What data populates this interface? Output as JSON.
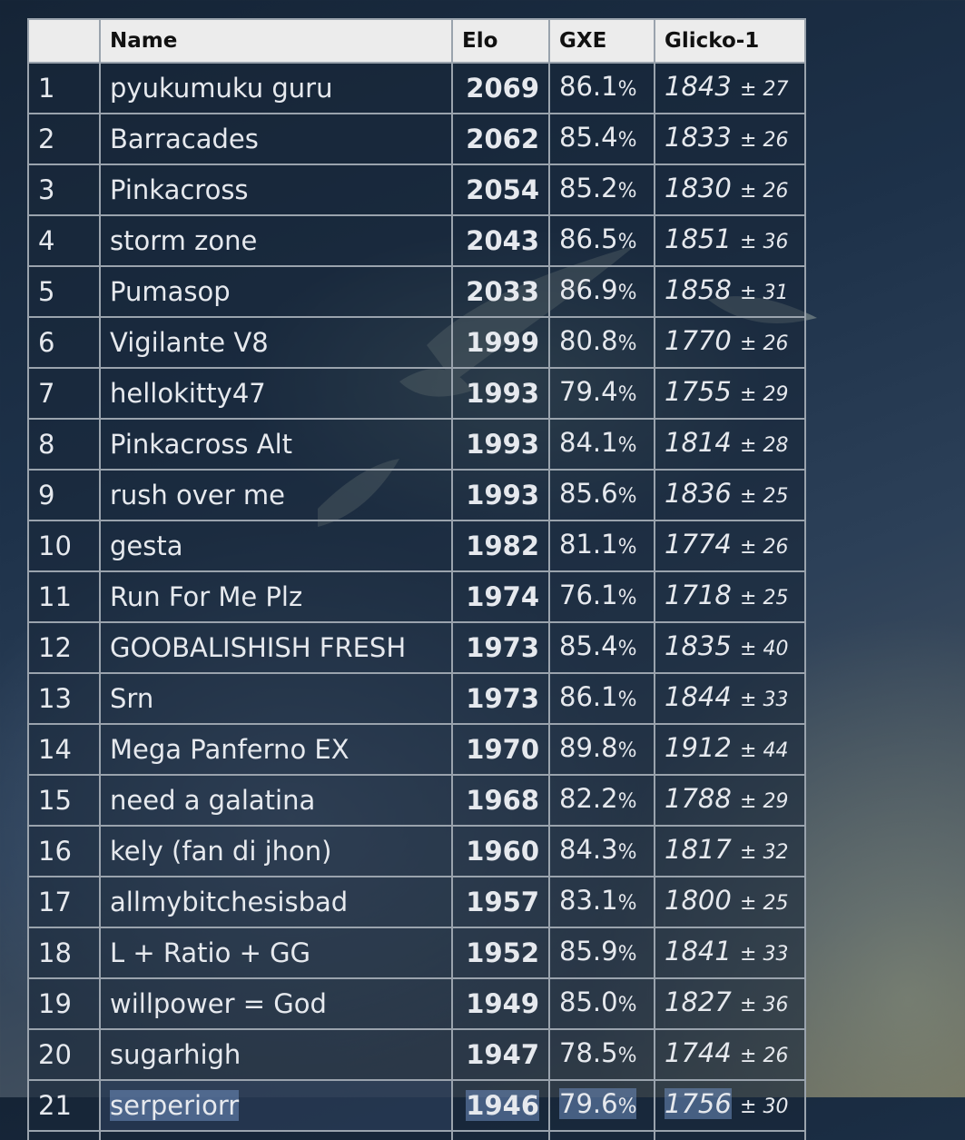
{
  "table": {
    "headers": {
      "rank": "",
      "name": "Name",
      "elo": "Elo",
      "gxe": "GXE",
      "glicko": "Glicko-1"
    },
    "rows": [
      {
        "rank": "1",
        "name": "pyukumuku guru",
        "elo": "2069",
        "gxe": "86.1",
        "rating": "1843",
        "dev": "± 27"
      },
      {
        "rank": "2",
        "name": "Barracades",
        "elo": "2062",
        "gxe": "85.4",
        "rating": "1833",
        "dev": "± 26"
      },
      {
        "rank": "3",
        "name": "Pinkacross",
        "elo": "2054",
        "gxe": "85.2",
        "rating": "1830",
        "dev": "± 26"
      },
      {
        "rank": "4",
        "name": "storm zone",
        "elo": "2043",
        "gxe": "86.5",
        "rating": "1851",
        "dev": "± 36"
      },
      {
        "rank": "5",
        "name": "Pumasop",
        "elo": "2033",
        "gxe": "86.9",
        "rating": "1858",
        "dev": "± 31"
      },
      {
        "rank": "6",
        "name": "Vigilante V8",
        "elo": "1999",
        "gxe": "80.8",
        "rating": "1770",
        "dev": "± 26"
      },
      {
        "rank": "7",
        "name": "hellokitty47",
        "elo": "1993",
        "gxe": "79.4",
        "rating": "1755",
        "dev": "± 29"
      },
      {
        "rank": "8",
        "name": "Pinkacross Alt",
        "elo": "1993",
        "gxe": "84.1",
        "rating": "1814",
        "dev": "± 28"
      },
      {
        "rank": "9",
        "name": "rush over me",
        "elo": "1993",
        "gxe": "85.6",
        "rating": "1836",
        "dev": "± 25"
      },
      {
        "rank": "10",
        "name": "gesta",
        "elo": "1982",
        "gxe": "81.1",
        "rating": "1774",
        "dev": "± 26"
      },
      {
        "rank": "11",
        "name": "Run For Me Plz",
        "elo": "1974",
        "gxe": "76.1",
        "rating": "1718",
        "dev": "± 25"
      },
      {
        "rank": "12",
        "name": "GOOBALISHISH FRESH",
        "elo": "1973",
        "gxe": "85.4",
        "rating": "1835",
        "dev": "± 40"
      },
      {
        "rank": "13",
        "name": "Srn",
        "elo": "1973",
        "gxe": "86.1",
        "rating": "1844",
        "dev": "± 33"
      },
      {
        "rank": "14",
        "name": "Mega Panferno EX",
        "elo": "1970",
        "gxe": "89.8",
        "rating": "1912",
        "dev": "± 44"
      },
      {
        "rank": "15",
        "name": "need a galatina",
        "elo": "1968",
        "gxe": "82.2",
        "rating": "1788",
        "dev": "± 29"
      },
      {
        "rank": "16",
        "name": "kely (fan di jhon)",
        "elo": "1960",
        "gxe": "84.3",
        "rating": "1817",
        "dev": "± 32"
      },
      {
        "rank": "17",
        "name": "allmybitchesisbad",
        "elo": "1957",
        "gxe": "83.1",
        "rating": "1800",
        "dev": "± 25"
      },
      {
        "rank": "18",
        "name": "L + Ratio + GG",
        "elo": "1952",
        "gxe": "85.9",
        "rating": "1841",
        "dev": "± 33"
      },
      {
        "rank": "19",
        "name": "willpower = God",
        "elo": "1949",
        "gxe": "85.0",
        "rating": "1827",
        "dev": "± 36"
      },
      {
        "rank": "20",
        "name": "sugarhigh",
        "elo": "1947",
        "gxe": "78.5",
        "rating": "1744",
        "dev": "± 26"
      },
      {
        "rank": "21",
        "name": "serperiorr",
        "elo": "1946",
        "gxe": "79.6",
        "rating": "1756",
        "dev": "± 30"
      }
    ],
    "percent_sign": "%",
    "selected_row_rank": "21"
  },
  "colors": {
    "header_bg": "#ececec",
    "cell_border": "#9aa3ad",
    "text": "#e6e9ee",
    "selection": "#6e8cbe"
  }
}
